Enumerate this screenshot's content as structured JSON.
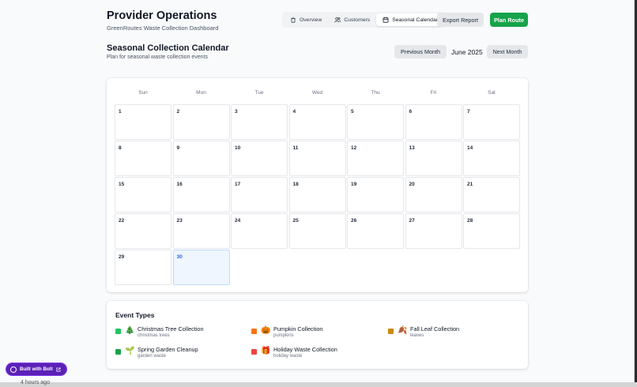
{
  "header": {
    "title": "Provider Operations",
    "subtitle": "GreenRoutes Waste Collection Dashboard",
    "tabs": [
      {
        "label": "Overview",
        "icon": "trash-icon"
      },
      {
        "label": "Customers",
        "icon": "users-icon"
      },
      {
        "label": "Seasonal Calendar",
        "icon": "calendar-icon",
        "active": true
      }
    ],
    "export_label": "Export Report",
    "plan_label": "Plan Route"
  },
  "calendar": {
    "title": "Seasonal Collection Calendar",
    "subtitle": "Plan for seasonal waste collection events",
    "prev_label": "Previous Month",
    "month_label": "June 2025",
    "next_label": "Next Month",
    "weekdays": [
      "Sun",
      "Mon",
      "Tue",
      "Wed",
      "Thu",
      "Fri",
      "Sat"
    ],
    "days": [
      "1",
      "2",
      "3",
      "4",
      "5",
      "6",
      "7",
      "8",
      "9",
      "10",
      "11",
      "12",
      "13",
      "14",
      "15",
      "16",
      "17",
      "18",
      "19",
      "20",
      "21",
      "22",
      "23",
      "24",
      "25",
      "26",
      "27",
      "28",
      "29",
      "30"
    ],
    "today": "30",
    "today_color": "#2563eb"
  },
  "legend": {
    "title": "Event Types",
    "items": [
      {
        "name": "Christmas Tree Collection",
        "sub": "christmas trees",
        "color": "#22c55e",
        "emoji": "🎄"
      },
      {
        "name": "Pumpkin Collection",
        "sub": "pumpkins",
        "color": "#f97316",
        "emoji": "🎃"
      },
      {
        "name": "Fall Leaf Collection",
        "sub": "leaves",
        "color": "#ca8a04",
        "emoji": "🍂"
      },
      {
        "name": "Spring Garden Cleanup",
        "sub": "garden waste",
        "color": "#16a34a",
        "emoji": "🌱"
      },
      {
        "name": "Holiday Waste Collection",
        "sub": "holiday waste",
        "color": "#ef4444",
        "emoji": "🎁"
      }
    ]
  },
  "badge": {
    "label": "Built with Bolt"
  },
  "footer_text": "4 hours ago"
}
